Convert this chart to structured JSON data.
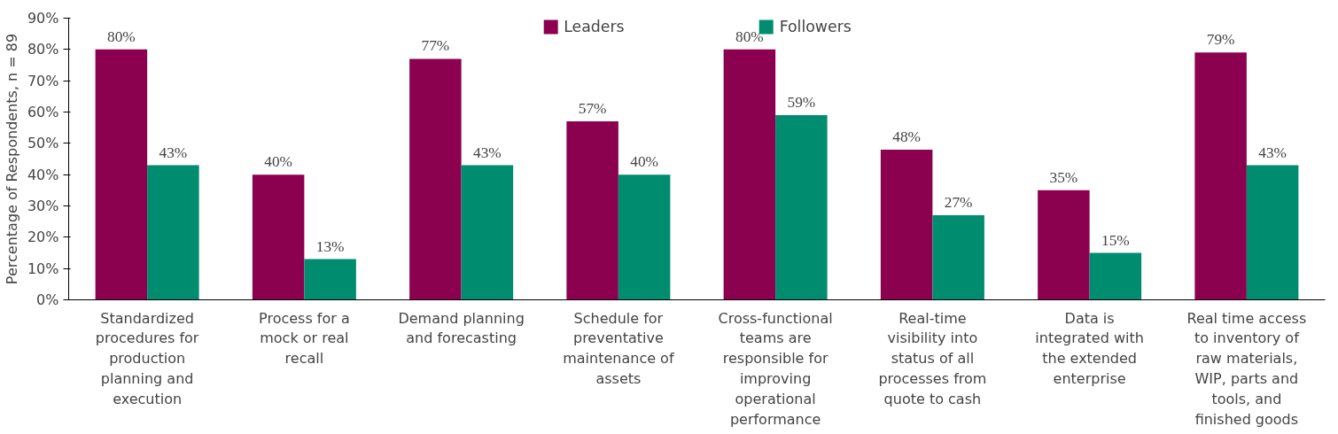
{
  "chart_data": {
    "type": "bar",
    "ylabel": "Percentage of Respondents, n = 89",
    "categories": [
      "Standardized procedures for production planning and execution",
      "Process for a mock or real recall",
      "Demand planning and forecasting",
      "Schedule for preventative maintenance of assets",
      "Cross-functional teams are responsible for improving operational performance",
      "Real-time visibility into status of all processes from quote to cash",
      "Data is integrated with the extended enterprise",
      "Real time access to inventory of raw materials, WIP, parts and tools, and finished goods"
    ],
    "series": [
      {
        "name": "Leaders",
        "color": "#8c0050",
        "values": [
          80,
          40,
          77,
          57,
          80,
          48,
          35,
          79
        ],
        "value_labels": [
          "80%",
          "40%",
          "77%",
          "57%",
          "80%",
          "48%",
          "35%",
          "79%"
        ]
      },
      {
        "name": "Followers",
        "color": "#008c6e",
        "values": [
          43,
          13,
          43,
          40,
          59,
          27,
          15,
          43
        ],
        "value_labels": [
          "43%",
          "13%",
          "43%",
          "40%",
          "59%",
          "27%",
          "15%",
          "43%"
        ]
      }
    ],
    "ylim": [
      0,
      90
    ],
    "yticks": [
      {
        "value": 0,
        "label": "0%"
      },
      {
        "value": 10,
        "label": "10%"
      },
      {
        "value": 20,
        "label": "20%"
      },
      {
        "value": 30,
        "label": "30%"
      },
      {
        "value": 40,
        "label": "40%"
      },
      {
        "value": 50,
        "label": "50%"
      },
      {
        "value": 60,
        "label": "60%"
      },
      {
        "value": 70,
        "label": "70%"
      },
      {
        "value": 80,
        "label": "80%"
      },
      {
        "value": 90,
        "label": "90%"
      }
    ],
    "grid": false,
    "legend": "top"
  }
}
